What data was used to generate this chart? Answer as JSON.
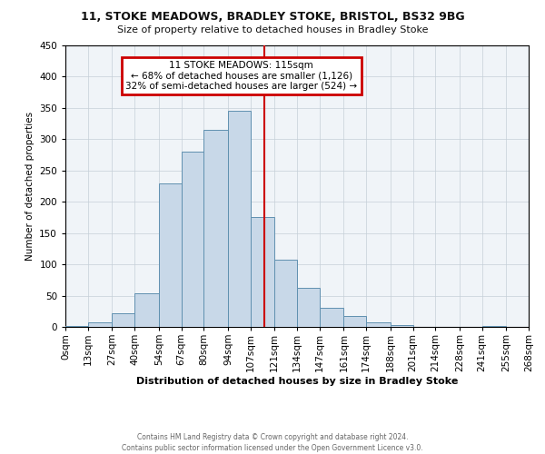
{
  "title": "11, STOKE MEADOWS, BRADLEY STOKE, BRISTOL, BS32 9BG",
  "subtitle": "Size of property relative to detached houses in Bradley Stoke",
  "xlabel": "Distribution of detached houses by size in Bradley Stoke",
  "ylabel": "Number of detached properties",
  "bar_color": "#c8d8e8",
  "bar_edge_color": "#6090b0",
  "background_color": "#f0f4f8",
  "annotation_title": "11 STOKE MEADOWS: 115sqm",
  "annotation_line1": "← 68% of detached houses are smaller (1,126)",
  "annotation_line2": "32% of semi-detached houses are larger (524) →",
  "annotation_box_color": "#ffffff",
  "annotation_border_color": "#cc0000",
  "vline_x": 115,
  "vline_color": "#cc0000",
  "bin_edges": [
    0,
    13,
    27,
    40,
    54,
    67,
    80,
    94,
    107,
    121,
    134,
    147,
    161,
    174,
    188,
    201,
    214,
    228,
    241,
    255,
    268
  ],
  "bin_labels": [
    "0sqm",
    "13sqm",
    "27sqm",
    "40sqm",
    "54sqm",
    "67sqm",
    "80sqm",
    "94sqm",
    "107sqm",
    "121sqm",
    "134sqm",
    "147sqm",
    "161sqm",
    "174sqm",
    "188sqm",
    "201sqm",
    "214sqm",
    "228sqm",
    "241sqm",
    "255sqm",
    "268sqm"
  ],
  "bar_heights": [
    2,
    7,
    22,
    53,
    230,
    280,
    315,
    345,
    175,
    108,
    62,
    30,
    18,
    7,
    3,
    0,
    0,
    0,
    1
  ],
  "ylim": [
    0,
    450
  ],
  "yticks": [
    0,
    50,
    100,
    150,
    200,
    250,
    300,
    350,
    400,
    450
  ],
  "footer_line1": "Contains HM Land Registry data © Crown copyright and database right 2024.",
  "footer_line2": "Contains public sector information licensed under the Open Government Licence v3.0."
}
